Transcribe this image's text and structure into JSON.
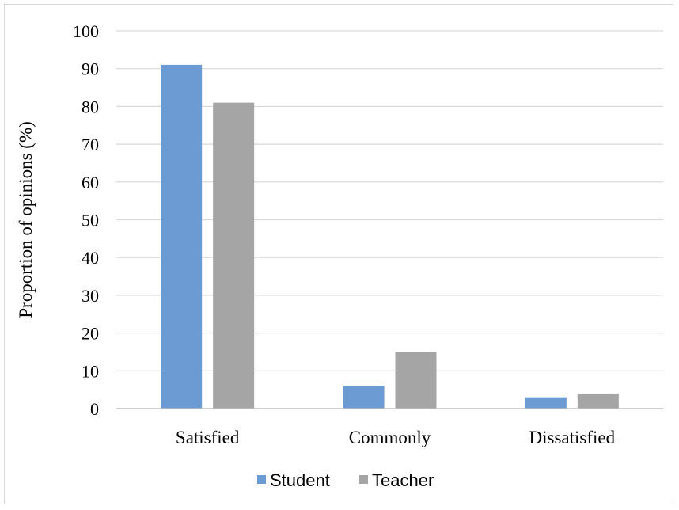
{
  "chart_data": {
    "type": "bar",
    "title": "",
    "xlabel": "",
    "ylabel": "Proportion of opinions (%)",
    "categories": [
      "Satisfied",
      "Commonly",
      "Dissatisfied"
    ],
    "series": [
      {
        "name": "Student",
        "values": [
          91,
          6,
          3
        ],
        "color": "#6b9bd2"
      },
      {
        "name": "Teacher",
        "values": [
          81,
          15,
          4
        ],
        "color": "#a5a5a5"
      }
    ],
    "ylim": [
      0,
      100
    ],
    "yticks": [
      "0",
      "10",
      "20",
      "30",
      "40",
      "50",
      "60",
      "70",
      "80",
      "90",
      "100"
    ],
    "grid": true,
    "legend_position": "bottom"
  }
}
